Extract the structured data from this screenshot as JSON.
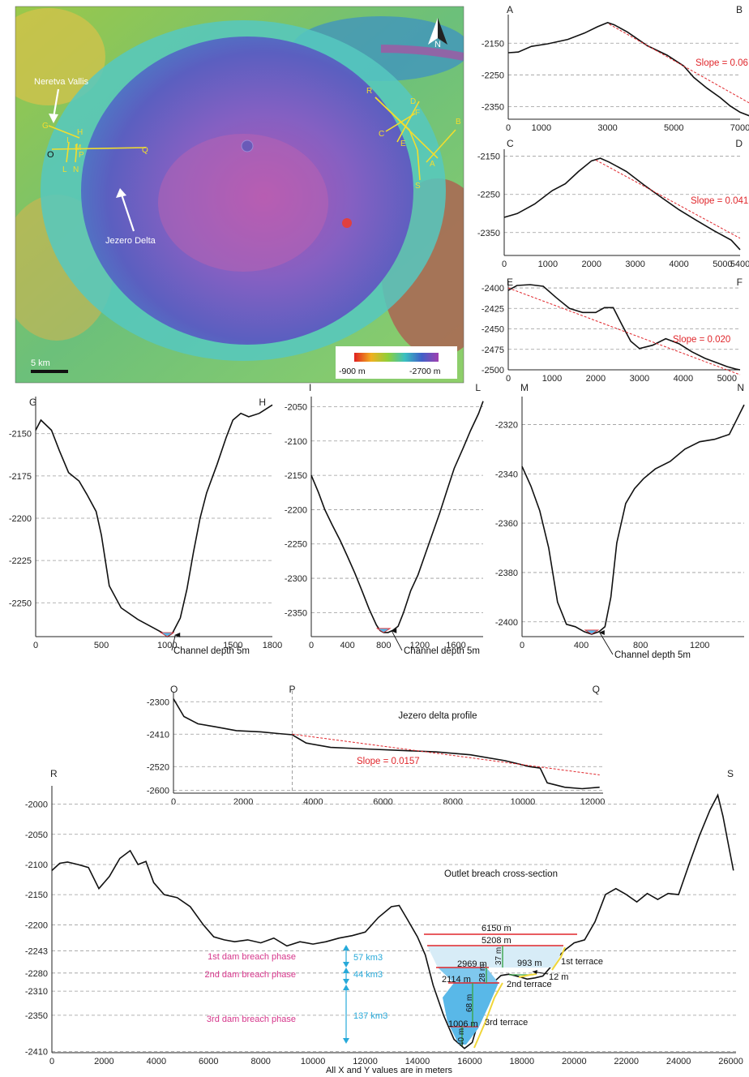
{
  "map": {
    "panel_letter": "A",
    "labels": {
      "neretva": "Neretva Vallis",
      "delta": "Jezero Delta",
      "scale": "5 km",
      "north": "N"
    },
    "legend": {
      "min_label": "-900 m",
      "max_label": "-2700 m"
    },
    "profile_letters": [
      "R",
      "F",
      "D",
      "C",
      "E",
      "B",
      "A",
      "S",
      "G",
      "H",
      "M",
      "O",
      "P",
      "Q",
      "I",
      "L",
      "N"
    ]
  },
  "chart_data": [
    {
      "id": "AB",
      "type": "line",
      "start_label": "A",
      "end_label": "B",
      "xlim": [
        0,
        7000
      ],
      "ylim": [
        -2390,
        -2070
      ],
      "xticks": [
        0,
        1000,
        3000,
        5000,
        7000
      ],
      "yticks": [
        -2150,
        -2250,
        -2350
      ],
      "x": [
        0,
        300,
        700,
        1200,
        1800,
        2300,
        2700,
        3000,
        3200,
        3600,
        4200,
        4800,
        5300,
        5600,
        6000,
        6400,
        6700,
        7000,
        7300
      ],
      "y": [
        -2180,
        -2178,
        -2160,
        -2152,
        -2138,
        -2118,
        -2098,
        -2085,
        -2092,
        -2115,
        -2158,
        -2188,
        -2222,
        -2258,
        -2292,
        -2322,
        -2348,
        -2368,
        -2380
      ],
      "slope_line": {
        "x": [
          3050,
          7300
        ],
        "y": [
          -2090,
          -2340
        ]
      },
      "slope_label": "Slope = 0.06"
    },
    {
      "id": "CD",
      "type": "line",
      "start_label": "C",
      "end_label": "D",
      "xlim": [
        0,
        5400
      ],
      "ylim": [
        -2410,
        -2140
      ],
      "xticks": [
        0,
        1000,
        2000,
        3000,
        4000,
        5000,
        5400
      ],
      "yticks": [
        -2150,
        -2250,
        -2350
      ],
      "x": [
        0,
        300,
        700,
        1100,
        1400,
        1700,
        2000,
        2200,
        2400,
        2800,
        3200,
        3600,
        4000,
        4400,
        4800,
        5200,
        5400
      ],
      "y": [
        -2310,
        -2300,
        -2275,
        -2240,
        -2222,
        -2190,
        -2162,
        -2155,
        -2165,
        -2190,
        -2225,
        -2258,
        -2290,
        -2318,
        -2345,
        -2370,
        -2395
      ],
      "slope_line": {
        "x": [
          2100,
          5400
        ],
        "y": [
          -2160,
          -2365
        ]
      },
      "slope_label": "Slope = 0.041"
    },
    {
      "id": "EF",
      "type": "line",
      "start_label": "E",
      "end_label": "F",
      "xlim": [
        0,
        5300
      ],
      "ylim": [
        -2500,
        -2395
      ],
      "xticks": [
        0,
        1000,
        2000,
        3000,
        4000,
        5000
      ],
      "yticks": [
        -2400,
        -2425,
        -2450,
        -2475,
        -2500
      ],
      "x": [
        0,
        200,
        500,
        800,
        1100,
        1400,
        1700,
        2000,
        2200,
        2400,
        2600,
        2800,
        3000,
        3300,
        3600,
        3900,
        4200,
        4500,
        4800,
        5000,
        5200,
        5300
      ],
      "y": [
        -2403,
        -2397,
        -2396,
        -2398,
        -2412,
        -2425,
        -2430,
        -2430,
        -2424,
        -2424,
        -2445,
        -2465,
        -2474,
        -2470,
        -2462,
        -2468,
        -2478,
        -2486,
        -2492,
        -2496,
        -2499,
        -2500
      ],
      "slope_line": {
        "x": [
          0,
          5300
        ],
        "y": [
          -2400,
          -2506
        ]
      },
      "slope_label": "Slope = 0.020"
    },
    {
      "id": "GH",
      "type": "line",
      "start_label": "G",
      "end_label": "H",
      "xlim": [
        0,
        1800
      ],
      "ylim": [
        -2270,
        -2130
      ],
      "xticks": [
        0,
        500,
        1000,
        1500,
        1800
      ],
      "yticks": [
        -2150,
        -2175,
        -2200,
        -2225,
        -2250
      ],
      "x": [
        0,
        40,
        120,
        180,
        250,
        330,
        390,
        460,
        500,
        560,
        650,
        780,
        900,
        970,
        1000,
        1040,
        1100,
        1150,
        1200,
        1250,
        1300,
        1380,
        1450,
        1500,
        1560,
        1620,
        1700,
        1800
      ],
      "y": [
        -2148,
        -2142,
        -2148,
        -2160,
        -2173,
        -2178,
        -2186,
        -2196,
        -2210,
        -2240,
        -2253,
        -2260,
        -2265,
        -2268,
        -2270,
        -2268,
        -2259,
        -2242,
        -2220,
        -2200,
        -2185,
        -2168,
        -2152,
        -2142,
        -2138,
        -2140,
        -2138,
        -2133
      ],
      "channel_label": "Channel depth 5m"
    },
    {
      "id": "IL",
      "type": "line",
      "start_label": "I",
      "end_label": "L",
      "xlim": [
        0,
        1900
      ],
      "ylim": [
        -2385,
        -2040
      ],
      "xticks": [
        0,
        400,
        800,
        1200,
        1600
      ],
      "yticks": [
        -2050,
        -2100,
        -2150,
        -2200,
        -2250,
        -2300,
        -2350
      ],
      "x": [
        0,
        80,
        150,
        230,
        320,
        400,
        480,
        560,
        640,
        720,
        760,
        800,
        850,
        900,
        960,
        1020,
        1100,
        1180,
        1260,
        1340,
        1420,
        1500,
        1580,
        1680,
        1760,
        1850,
        1900
      ],
      "y": [
        -2150,
        -2175,
        -2200,
        -2222,
        -2245,
        -2268,
        -2292,
        -2318,
        -2345,
        -2368,
        -2376,
        -2379,
        -2379,
        -2376,
        -2370,
        -2350,
        -2318,
        -2295,
        -2265,
        -2235,
        -2205,
        -2172,
        -2140,
        -2110,
        -2085,
        -2060,
        -2042
      ],
      "channel_label": "Channel depth 5m"
    },
    {
      "id": "MN",
      "type": "line",
      "start_label": "M",
      "end_label": "N",
      "xlim": [
        0,
        1500
      ],
      "ylim": [
        -2406,
        -2310
      ],
      "xticks": [
        0,
        400,
        800,
        1200
      ],
      "yticks": [
        -2320,
        -2340,
        -2360,
        -2380,
        -2400
      ],
      "x": [
        0,
        60,
        120,
        180,
        240,
        300,
        360,
        420,
        470,
        520,
        560,
        600,
        640,
        700,
        760,
        820,
        900,
        1000,
        1100,
        1200,
        1300,
        1400,
        1450,
        1500
      ],
      "y": [
        -2337,
        -2345,
        -2355,
        -2370,
        -2392,
        -2401,
        -2402,
        -2404,
        -2405,
        -2404,
        -2402,
        -2390,
        -2368,
        -2352,
        -2346,
        -2342,
        -2338,
        -2335,
        -2330,
        -2327,
        -2326,
        -2324,
        -2318,
        -2312
      ],
      "channel_label": "Channel depth 5m"
    },
    {
      "id": "OQ",
      "type": "line",
      "start_label": "O",
      "end_label": "Q",
      "mid_label": "P",
      "title": "Jezero delta profile",
      "xlim": [
        0,
        12300
      ],
      "ylim": [
        -2610,
        -2280
      ],
      "xticks": [
        0,
        2000,
        4000,
        6000,
        8000,
        10000,
        12000
      ],
      "yticks": [
        -2300,
        -2410,
        -2520,
        -2600
      ],
      "highlight_ytick": -2410,
      "x": [
        0,
        300,
        700,
        1200,
        1800,
        2500,
        3000,
        3400,
        3800,
        4500,
        5500,
        6500,
        7500,
        8500,
        9500,
        10200,
        10500,
        10700,
        11200,
        11700,
        12200
      ],
      "y": [
        -2290,
        -2350,
        -2375,
        -2385,
        -2398,
        -2402,
        -2408,
        -2412,
        -2440,
        -2455,
        -2460,
        -2465,
        -2470,
        -2480,
        -2500,
        -2520,
        -2525,
        -2575,
        -2590,
        -2595,
        -2590
      ],
      "slope_line": {
        "x": [
          3400,
          12200
        ],
        "y": [
          -2410,
          -2548
        ]
      },
      "slope_label": "Slope = 0.0157"
    },
    {
      "id": "RS",
      "type": "line",
      "start_label": "R",
      "end_label": "S",
      "title": "Outlet breach cross-section",
      "xlabel": "All X and Y values are in meters",
      "xlim": [
        0,
        26200
      ],
      "ylim": [
        -2412,
        -1975
      ],
      "xticks": [
        0,
        2000,
        4000,
        6000,
        8000,
        10000,
        12000,
        14000,
        16000,
        18000,
        20000,
        22000,
        24000,
        26000
      ],
      "yticks": [
        -2000,
        -2050,
        -2100,
        -2150,
        -2200,
        -2243,
        -2280,
        -2310,
        -2350,
        -2410
      ],
      "highlight_yticks": [
        -2243,
        -2280,
        -2310,
        -2410
      ],
      "x": [
        0,
        300,
        600,
        1000,
        1400,
        1800,
        2200,
        2600,
        3000,
        3300,
        3600,
        3900,
        4300,
        4800,
        5300,
        5800,
        6200,
        6600,
        7000,
        7500,
        8000,
        8500,
        9000,
        9500,
        10000,
        10500,
        11000,
        11500,
        12000,
        12500,
        13000,
        13300,
        13600,
        14000,
        14300,
        14600,
        15000,
        15400,
        15800,
        16100,
        16400,
        16800,
        17200,
        17500,
        17900,
        18200,
        18500,
        18800,
        19100,
        19400,
        19700,
        20000,
        20400,
        20800,
        21200,
        21600,
        22000,
        22400,
        22800,
        23200,
        23600,
        24000,
        24400,
        24800,
        25200,
        25500,
        25700,
        25900,
        26100
      ],
      "y": [
        -2110,
        -2098,
        -2096,
        -2100,
        -2105,
        -2140,
        -2120,
        -2090,
        -2077,
        -2100,
        -2095,
        -2130,
        -2150,
        -2155,
        -2170,
        -2200,
        -2220,
        -2225,
        -2228,
        -2225,
        -2230,
        -2222,
        -2235,
        -2228,
        -2232,
        -2228,
        -2222,
        -2218,
        -2212,
        -2188,
        -2170,
        -2168,
        -2190,
        -2220,
        -2250,
        -2300,
        -2350,
        -2390,
        -2405,
        -2395,
        -2350,
        -2300,
        -2284,
        -2282,
        -2286,
        -2290,
        -2288,
        -2285,
        -2270,
        -2252,
        -2240,
        -2230,
        -2225,
        -2195,
        -2150,
        -2140,
        -2150,
        -2162,
        -2148,
        -2158,
        -2148,
        -2150,
        -2100,
        -2052,
        -2010,
        -1985,
        -2020,
        -2065,
        -2110
      ]
    }
  ],
  "breach": {
    "phases": [
      {
        "label": "1st dam breach phase",
        "volume": "57 km3"
      },
      {
        "label": "2nd dam breach phase",
        "volume": "44 km3"
      },
      {
        "label": "3rd dam breach phase",
        "volume": "137 km3"
      }
    ],
    "widths": {
      "w6150": "6150 m",
      "w5208": "5208 m",
      "w2969": "2969 m",
      "w993": "993 m",
      "w2114": "2114 m",
      "w1006": "1006 m"
    },
    "depths": {
      "d37": "37 m",
      "d28": "28 m",
      "d68": "68 m",
      "d40": "40 m",
      "d12": "12 m"
    },
    "terraces": {
      "t1": "1st terrace",
      "t2": "2nd terrace",
      "t3": "3rd terrace"
    }
  },
  "colors": {
    "slope": "#e0262b",
    "phase_text": "#d6368b",
    "volume_text": "#27a9d9",
    "lake_fill": "#59b8e8",
    "breach_red": "#e0262b",
    "terrace_yellow": "#f0d63a",
    "depth_green": "#3aa64a"
  }
}
